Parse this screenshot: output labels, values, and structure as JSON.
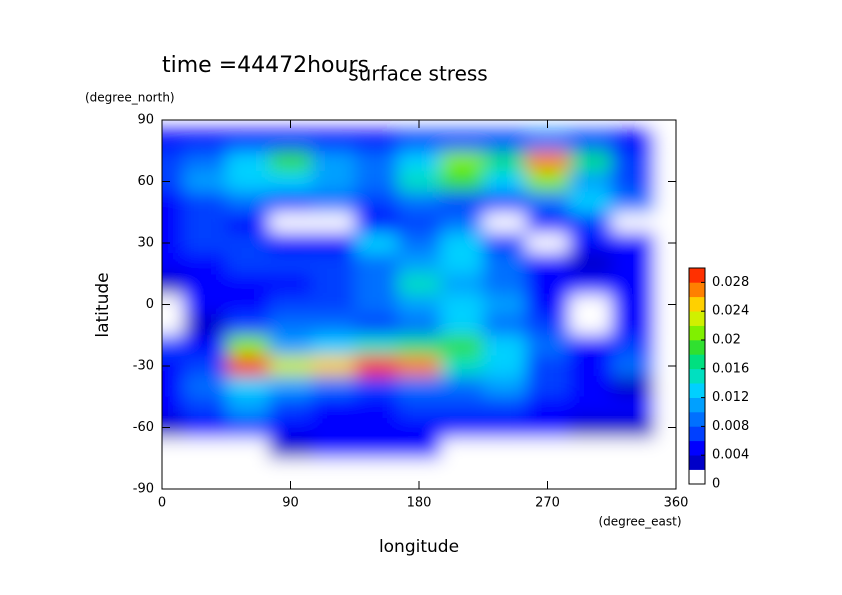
{
  "chart_data": {
    "type": "contour",
    "title": "surface stress",
    "annotation": "time =44472hours",
    "xlabel": "longitude",
    "ylabel": "latitude",
    "x_unit": "(degree_east)",
    "y_unit": "(degree_north)",
    "xlim": [
      0,
      360
    ],
    "ylim": [
      -90,
      90
    ],
    "xticks": [
      0,
      90,
      180,
      270,
      360
    ],
    "yticks": [
      -90,
      -60,
      -30,
      0,
      30,
      60,
      90
    ],
    "x": [
      0,
      30,
      60,
      90,
      120,
      150,
      180,
      210,
      240,
      270,
      300,
      330,
      360
    ],
    "y": [
      80,
      70,
      60,
      50,
      40,
      30,
      20,
      10,
      0,
      -10,
      -20,
      -30,
      -40,
      -50,
      -60,
      -70,
      -80
    ],
    "z": [
      [
        0.004,
        0.004,
        0.004,
        0.005,
        0.004,
        0.005,
        0.006,
        0.006,
        0.006,
        0.008,
        0.006,
        0.004,
        0
      ],
      [
        0.006,
        0.008,
        0.012,
        0.018,
        0.01,
        0.008,
        0.012,
        0.02,
        0.016,
        0.026,
        0.016,
        0.006,
        0
      ],
      [
        0.006,
        0.01,
        0.012,
        0.012,
        0.01,
        0.008,
        0.014,
        0.018,
        0.012,
        0.02,
        0.01,
        0.006,
        0
      ],
      [
        0.004,
        0.006,
        0.008,
        0.006,
        0.008,
        0.006,
        0.008,
        0.006,
        0.006,
        0.008,
        0.012,
        0.008,
        0
      ],
      [
        0.004,
        0.006,
        0.004,
        0,
        0,
        0.004,
        0.006,
        0.008,
        0,
        0.004,
        0.006,
        0,
        0
      ],
      [
        0.004,
        0.006,
        0.006,
        0.004,
        0.004,
        0.012,
        0.008,
        0.012,
        0.006,
        0,
        0.004,
        0.004,
        0
      ],
      [
        0.004,
        0.004,
        0.006,
        0.006,
        0.006,
        0.008,
        0.01,
        0.012,
        0.008,
        0.004,
        0.002,
        0.004,
        0
      ],
      [
        0.002,
        0.004,
        0.004,
        0.004,
        0.006,
        0.008,
        0.014,
        0.01,
        0.008,
        0.004,
        0.004,
        0.004,
        0
      ],
      [
        0,
        0.004,
        0.004,
        0.006,
        0.006,
        0.008,
        0.01,
        0.012,
        0.01,
        0.004,
        0,
        0.004,
        0
      ],
      [
        0,
        0.002,
        0.006,
        0.008,
        0.008,
        0.006,
        0.008,
        0.012,
        0.008,
        0.006,
        0,
        0.004,
        0
      ],
      [
        0.006,
        0.004,
        0.02,
        0.01,
        0.012,
        0.014,
        0.016,
        0.018,
        0.012,
        0.008,
        0.004,
        0.006,
        0
      ],
      [
        0.004,
        0.006,
        0.03,
        0.022,
        0.024,
        0.028,
        0.026,
        0.014,
        0.012,
        0.006,
        0.004,
        0.008,
        0
      ],
      [
        0.004,
        0.008,
        0.012,
        0.01,
        0.008,
        0.006,
        0.008,
        0.008,
        0.01,
        0.006,
        0.004,
        0.002,
        0
      ],
      [
        0.004,
        0.006,
        0.01,
        0.006,
        0.004,
        0.004,
        0.006,
        0.006,
        0.006,
        0.004,
        0.004,
        0.004,
        0
      ],
      [
        0.002,
        0.004,
        0.006,
        0.004,
        0.004,
        0.004,
        0.004,
        0.004,
        0.004,
        0.004,
        0.002,
        0.002,
        0
      ],
      [
        0,
        0,
        0,
        0.002,
        0.004,
        0.004,
        0.004,
        0,
        0,
        0,
        0,
        0,
        0
      ],
      [
        0,
        0,
        0,
        0,
        0,
        0,
        0,
        0,
        0,
        0,
        0,
        0,
        0
      ]
    ],
    "clim": [
      0,
      0.03
    ],
    "colorbar_ticks": [
      0,
      0.004,
      0.008,
      0.012,
      0.016,
      0.02,
      0.024,
      0.028
    ],
    "colors": [
      "#ffffff",
      "#0000c8",
      "#0000ff",
      "#0040ff",
      "#0070ff",
      "#00a0ff",
      "#00d0ff",
      "#00e0c0",
      "#00e080",
      "#30e030",
      "#80f000",
      "#d0f000",
      "#ffd000",
      "#ff8000",
      "#ff3000"
    ]
  }
}
